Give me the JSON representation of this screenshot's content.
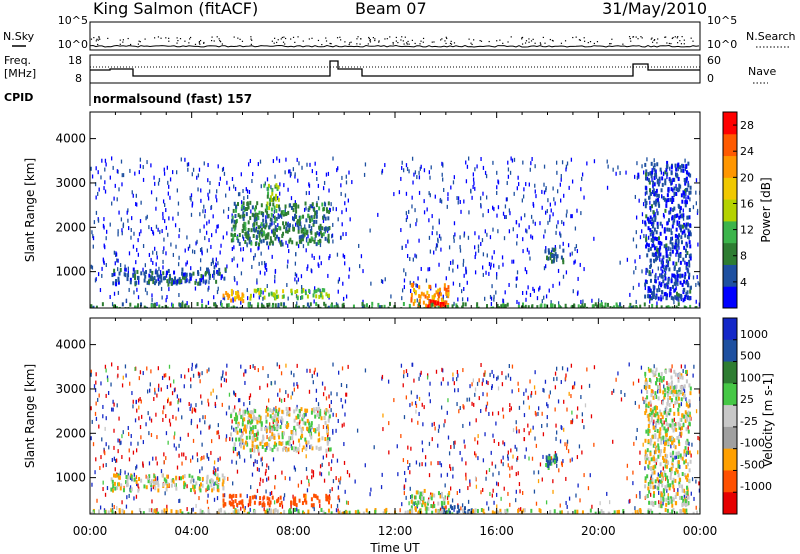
{
  "header": {
    "station": "King Salmon (fitACF)",
    "beam": "Beam 07",
    "date": "31/May/2010"
  },
  "top_panel": {
    "left_labels": {
      "nsky": "N.Sky",
      "freq_line1": "Freq.",
      "freq_line2": "[MHz]",
      "cpid": "CPID"
    },
    "right_labels": {
      "nsearch": "N.Search",
      "nave": "Nave"
    },
    "noise_ticks": [
      "10^5",
      "10^0"
    ],
    "freq_ticks": [
      "18",
      "8"
    ],
    "nave_ticks": [
      "60",
      "0"
    ],
    "cpid_text": "normalsound (fast) 157"
  },
  "x_axis": {
    "label": "Time UT",
    "ticks": [
      "00:00",
      "04:00",
      "08:00",
      "12:00",
      "16:00",
      "20:00",
      "00:00"
    ]
  },
  "colors": {
    "power_scale": [
      "#0000ff",
      "#1e50a0",
      "#2e7d32",
      "#3cb44b",
      "#b4d200",
      "#f0c800",
      "#ff9600",
      "#ff5a00",
      "#ff0000"
    ],
    "velocity_scale": [
      "#1428c8",
      "#1e50a0",
      "#2e7d32",
      "#46c846",
      "#c8c8c8",
      "#a0a0a0",
      "#ffa000",
      "#ff5000",
      "#e60000"
    ]
  },
  "chart_data": [
    {
      "type": "heatmap",
      "title": "Power",
      "xlabel": "Time UT",
      "ylabel": "Slant Range [km]",
      "xlim": [
        0,
        24
      ],
      "ylim": [
        180,
        4600
      ],
      "yticks": [
        1000,
        2000,
        3000,
        4000
      ],
      "colorbar": {
        "label": "Power [dB]",
        "ticks": [
          4,
          8,
          12,
          16,
          20,
          24,
          28
        ],
        "range": [
          0,
          30
        ]
      },
      "regions": [
        {
          "t0": 5.5,
          "t1": 9.4,
          "r0": 1650,
          "r1": 2600,
          "value": 8
        },
        {
          "t0": 6.8,
          "t1": 7.4,
          "r0": 2400,
          "r1": 3000,
          "value": 12
        },
        {
          "t0": 0.8,
          "t1": 5.3,
          "r0": 750,
          "r1": 1100,
          "value": 5
        },
        {
          "t0": 5.2,
          "t1": 6.0,
          "r0": 380,
          "r1": 650,
          "value": 20
        },
        {
          "t0": 6.2,
          "t1": 7.6,
          "r0": 420,
          "r1": 640,
          "value": 14
        },
        {
          "t0": 7.8,
          "t1": 9.4,
          "r0": 420,
          "r1": 640,
          "value": 13
        },
        {
          "t0": 12.6,
          "t1": 14.1,
          "r0": 250,
          "r1": 750,
          "value": 22
        },
        {
          "t0": 13.2,
          "t1": 14.0,
          "r0": 200,
          "r1": 380,
          "value": 27
        },
        {
          "t0": 17.8,
          "t1": 18.6,
          "r0": 1250,
          "r1": 1550,
          "value": 6
        },
        {
          "t0": 21.8,
          "t1": 23.6,
          "r0": 400,
          "r1": 3500,
          "value": 4
        },
        {
          "t0": 0.0,
          "t1": 24.0,
          "r0": 180,
          "r1": 320,
          "value": 9
        }
      ]
    },
    {
      "type": "heatmap",
      "title": "Velocity",
      "xlabel": "Time UT",
      "ylabel": "Slant Range [km]",
      "xlim": [
        0,
        24
      ],
      "ylim": [
        180,
        4600
      ],
      "yticks": [
        1000,
        2000,
        3000,
        4000
      ],
      "colorbar": {
        "label": "Velocity [m s-1]",
        "ticks": [
          1000,
          500,
          100,
          25,
          -25,
          -100,
          -500,
          -1000
        ]
      },
      "regions": [
        {
          "t0": 5.5,
          "t1": 9.4,
          "r0": 1650,
          "r1": 2600,
          "value": 0
        },
        {
          "t0": 0.8,
          "t1": 5.3,
          "r0": 750,
          "r1": 1100,
          "value": 0
        },
        {
          "t0": 5.2,
          "t1": 6.0,
          "r0": 380,
          "r1": 650,
          "value": -300
        },
        {
          "t0": 6.2,
          "t1": 7.6,
          "r0": 420,
          "r1": 640,
          "value": -200
        },
        {
          "t0": 7.8,
          "t1": 9.4,
          "r0": 420,
          "r1": 640,
          "value": -150
        },
        {
          "t0": 12.6,
          "t1": 14.1,
          "r0": 250,
          "r1": 750,
          "value": 10
        },
        {
          "t0": 13.8,
          "t1": 15.0,
          "r0": 200,
          "r1": 400,
          "value": 150
        },
        {
          "t0": 17.9,
          "t1": 18.4,
          "r0": 1250,
          "r1": 1550,
          "value": 120
        },
        {
          "t0": 21.8,
          "t1": 23.6,
          "r0": 400,
          "r1": 3500,
          "value": 0
        },
        {
          "t0": 0.0,
          "t1": 24.0,
          "r0": 180,
          "r1": 320,
          "value": 0
        }
      ]
    }
  ]
}
